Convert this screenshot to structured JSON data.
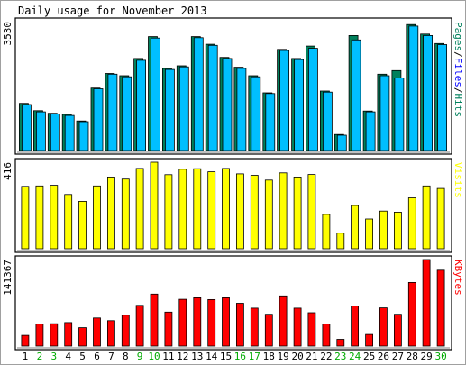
{
  "chart_data": [
    {
      "type": "bar",
      "title": "Daily usage for November 2013",
      "ylabel_parts": [
        {
          "text": "Pages",
          "color": "#00805c"
        },
        {
          "text": "/",
          "color": "#000000"
        },
        {
          "text": "Files",
          "color": "#0000ff"
        },
        {
          "text": "/",
          "color": "#000000"
        },
        {
          "text": "Hits",
          "color": "#00805c"
        }
      ],
      "ymax_label": "3530",
      "ylim": [
        0,
        3530
      ],
      "series": [
        {
          "name": "Hits",
          "color": "#00805c",
          "values": [
            1290,
            1090,
            1020,
            990,
            810,
            1710,
            2110,
            2050,
            2520,
            3120,
            2250,
            2320,
            3120,
            2910,
            2550,
            2280,
            2050,
            1580,
            2770,
            2520,
            2860,
            1630,
            440,
            3150,
            1080,
            2090,
            2190,
            3450,
            3190,
            2930
          ]
        },
        {
          "name": "Files",
          "color": "#00bfff",
          "values": [
            1260,
            1060,
            1000,
            960,
            790,
            1690,
            2090,
            2020,
            2470,
            3080,
            2220,
            2290,
            3090,
            2880,
            2520,
            2250,
            2020,
            1560,
            2740,
            2490,
            2800,
            1600,
            420,
            3030,
            1060,
            2050,
            1990,
            3410,
            3150,
            2900
          ]
        }
      ]
    },
    {
      "type": "bar",
      "ylabel_parts": [
        {
          "text": "Visits",
          "color": "#ffff00"
        }
      ],
      "ymax_label": "416",
      "ylim": [
        0,
        416
      ],
      "series": [
        {
          "name": "Visits",
          "color": "#ffff00",
          "values": [
            300,
            302,
            305,
            261,
            228,
            302,
            345,
            335,
            386,
            416,
            356,
            382,
            385,
            370,
            386,
            360,
            353,
            330,
            365,
            345,
            357,
            165,
            75,
            208,
            143,
            181,
            176,
            245,
            302,
            290
          ]
        }
      ]
    },
    {
      "type": "bar",
      "ylabel_parts": [
        {
          "text": "KBytes",
          "color": "#ff0000"
        }
      ],
      "ymax_label": "141367",
      "ylim": [
        0,
        141367
      ],
      "series": [
        {
          "name": "KBytes",
          "color": "#ff0000",
          "values": [
            17500,
            36000,
            36500,
            38500,
            30000,
            46000,
            41500,
            50500,
            66500,
            85000,
            55500,
            76500,
            79000,
            76000,
            79000,
            70000,
            62000,
            52000,
            82000,
            62000,
            54500,
            36000,
            11000,
            65500,
            19000,
            62500,
            52000,
            104000,
            141367,
            124000
          ]
        }
      ]
    }
  ],
  "days": [
    {
      "label": "1",
      "weekend": false
    },
    {
      "label": "2",
      "weekend": true
    },
    {
      "label": "3",
      "weekend": true
    },
    {
      "label": "4",
      "weekend": false
    },
    {
      "label": "5",
      "weekend": false
    },
    {
      "label": "6",
      "weekend": false
    },
    {
      "label": "7",
      "weekend": false
    },
    {
      "label": "8",
      "weekend": false
    },
    {
      "label": "9",
      "weekend": true
    },
    {
      "label": "10",
      "weekend": true
    },
    {
      "label": "11",
      "weekend": false
    },
    {
      "label": "12",
      "weekend": false
    },
    {
      "label": "13",
      "weekend": false
    },
    {
      "label": "14",
      "weekend": false
    },
    {
      "label": "15",
      "weekend": false
    },
    {
      "label": "16",
      "weekend": true
    },
    {
      "label": "17",
      "weekend": true
    },
    {
      "label": "18",
      "weekend": false
    },
    {
      "label": "19",
      "weekend": false
    },
    {
      "label": "20",
      "weekend": false
    },
    {
      "label": "21",
      "weekend": false
    },
    {
      "label": "22",
      "weekend": false
    },
    {
      "label": "23",
      "weekend": true
    },
    {
      "label": "24",
      "weekend": true
    },
    {
      "label": "25",
      "weekend": false
    },
    {
      "label": "26",
      "weekend": false
    },
    {
      "label": "27",
      "weekend": false
    },
    {
      "label": "28",
      "weekend": false
    },
    {
      "label": "29",
      "weekend": false
    },
    {
      "label": "30",
      "weekend": true
    }
  ],
  "colors": {
    "background": "#ffffff",
    "panel": "#ffffff",
    "frame": "#000000",
    "weekday_label": "#000000",
    "weekend_label": "#00aa00"
  }
}
